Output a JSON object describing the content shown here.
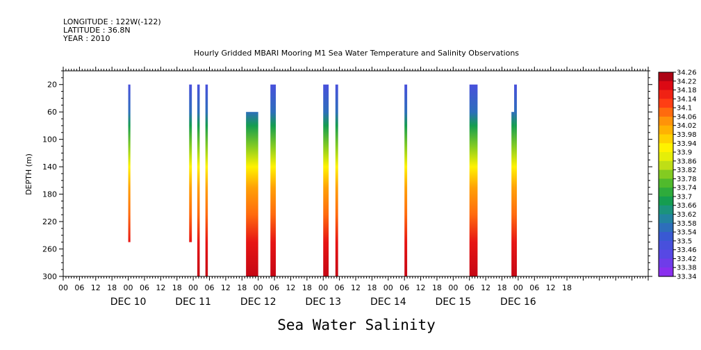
{
  "header": {
    "longitude": "LONGITUDE : 122W(-122)",
    "latitude": "LATITUDE : 36.8N",
    "year": "YEAR : 2010",
    "title": "Hourly Gridded MBARI Mooring M1 Sea Water Temperature and Salinity Observations"
  },
  "chart_data": {
    "type": "heatmap",
    "title": "Hourly Gridded MBARI Mooring M1 Sea Water Temperature and Salinity Observations",
    "subtitle": "Sea Water Salinity",
    "ylabel": "DEPTH (m)",
    "xlabel": "",
    "ylim": [
      300,
      0
    ],
    "y_reversed": true,
    "y_ticks": [
      20,
      60,
      100,
      140,
      180,
      220,
      260,
      300
    ],
    "x_range_hours": [
      -24,
      192
    ],
    "x_hour_labels": [
      "00",
      "06",
      "12",
      "18",
      "00",
      "06",
      "12",
      "18",
      "00",
      "06",
      "12",
      "18",
      "00",
      "06",
      "12",
      "18",
      "00",
      "06",
      "12",
      "18",
      "00",
      "06",
      "12",
      "18",
      "00",
      "06",
      "12",
      "18",
      "00",
      "06",
      "12",
      "18"
    ],
    "x_day_labels": [
      "DEC 10",
      "DEC 11",
      "DEC 12",
      "DEC 13",
      "DEC 14",
      "DEC 15",
      "DEC 16"
    ],
    "colorbar": {
      "min": 33.34,
      "max": 34.26,
      "labels": [
        "34.26",
        "34.22",
        "34.18",
        "34.14",
        "34.1",
        "34.06",
        "34.02",
        "33.98",
        "33.94",
        "33.9",
        "33.86",
        "33.82",
        "33.78",
        "33.74",
        "33.7",
        "33.66",
        "33.62",
        "33.58",
        "33.54",
        "33.5",
        "33.46",
        "33.42",
        "33.38",
        "33.34"
      ]
    },
    "depth_profile": [
      {
        "depth": 20,
        "salinity": 33.48
      },
      {
        "depth": 60,
        "salinity": 33.56
      },
      {
        "depth": 80,
        "salinity": 33.68
      },
      {
        "depth": 110,
        "salinity": 33.8
      },
      {
        "depth": 140,
        "salinity": 33.92
      },
      {
        "depth": 170,
        "salinity": 34.02
      },
      {
        "depth": 210,
        "salinity": 34.08
      },
      {
        "depth": 250,
        "salinity": 34.18
      },
      {
        "depth": 300,
        "salinity": 34.22
      }
    ],
    "observation_segments": [
      {
        "start_hour": 0,
        "end_hour": 0.8,
        "top_depth": 20,
        "bottom_depth": 250
      },
      {
        "start_hour": 22.5,
        "end_hour": 23.5,
        "top_depth": 20,
        "bottom_depth": 250
      },
      {
        "start_hour": 25.5,
        "end_hour": 26.4,
        "top_depth": 20,
        "bottom_depth": 300
      },
      {
        "start_hour": 28.5,
        "end_hour": 29.4,
        "top_depth": 20,
        "bottom_depth": 300
      },
      {
        "start_hour": 43.5,
        "end_hour": 48,
        "top_depth": 60,
        "bottom_depth": 300
      },
      {
        "start_hour": 52.5,
        "end_hour": 54.5,
        "top_depth": 20,
        "bottom_depth": 300
      },
      {
        "start_hour": 72,
        "end_hour": 74,
        "top_depth": 20,
        "bottom_depth": 300
      },
      {
        "start_hour": 76.5,
        "end_hour": 77.5,
        "top_depth": 20,
        "bottom_depth": 300
      },
      {
        "start_hour": 102,
        "end_hour": 103,
        "top_depth": 20,
        "bottom_depth": 300
      },
      {
        "start_hour": 126,
        "end_hour": 129,
        "top_depth": 20,
        "bottom_depth": 300
      },
      {
        "start_hour": 141.5,
        "end_hour": 142.5,
        "top_depth": 60,
        "bottom_depth": 300
      },
      {
        "start_hour": 142.5,
        "end_hour": 143.5,
        "top_depth": 20,
        "bottom_depth": 300
      }
    ]
  }
}
